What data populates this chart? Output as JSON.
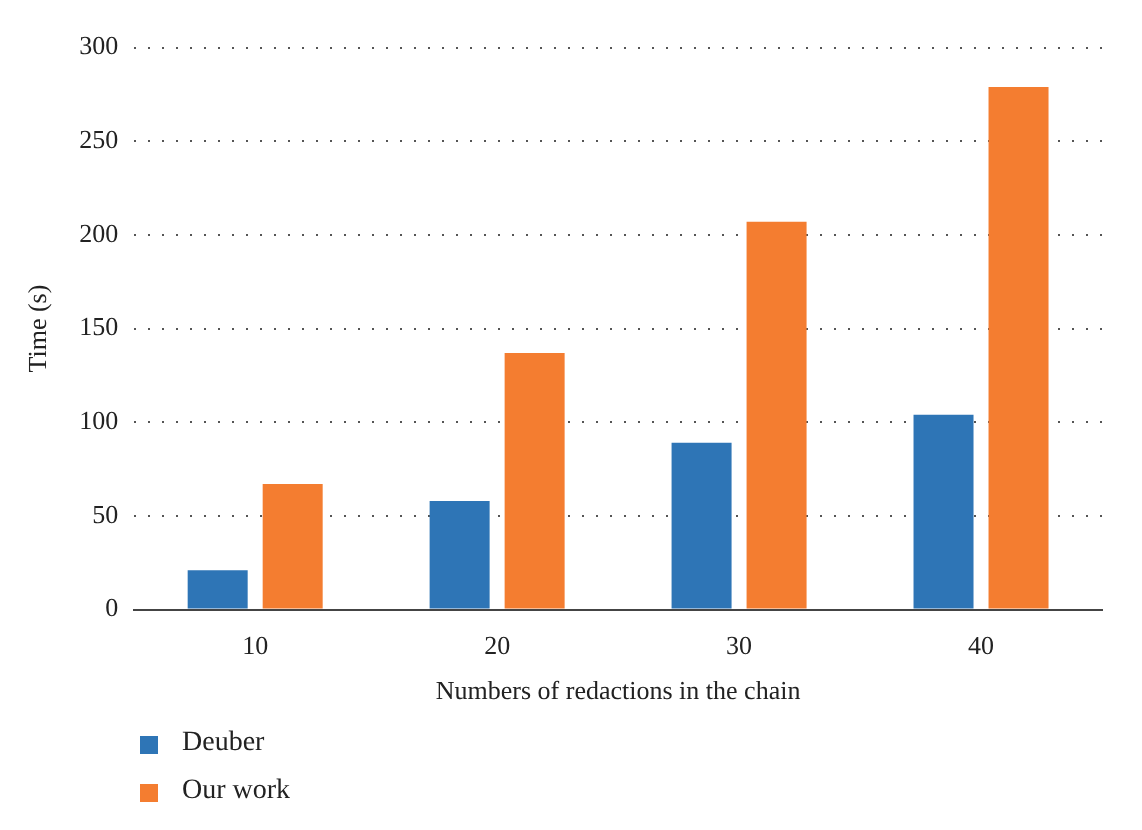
{
  "chart_data": {
    "type": "bar",
    "xlabel": "Numbers of redactions in the chain",
    "ylabel": "Time (s)",
    "categories": [
      "10",
      "20",
      "30",
      "40"
    ],
    "series": [
      {
        "name": "Deuber",
        "color": "#2e75b6",
        "values": [
          21,
          58,
          89,
          104
        ]
      },
      {
        "name": "Our work",
        "color": "#f47d30",
        "values": [
          67,
          137,
          207,
          279
        ]
      }
    ],
    "ylim": [
      0,
      300
    ],
    "yticks": [
      0,
      50,
      100,
      150,
      200,
      250,
      300
    ],
    "grid": "y",
    "legend": "bottom left"
  }
}
